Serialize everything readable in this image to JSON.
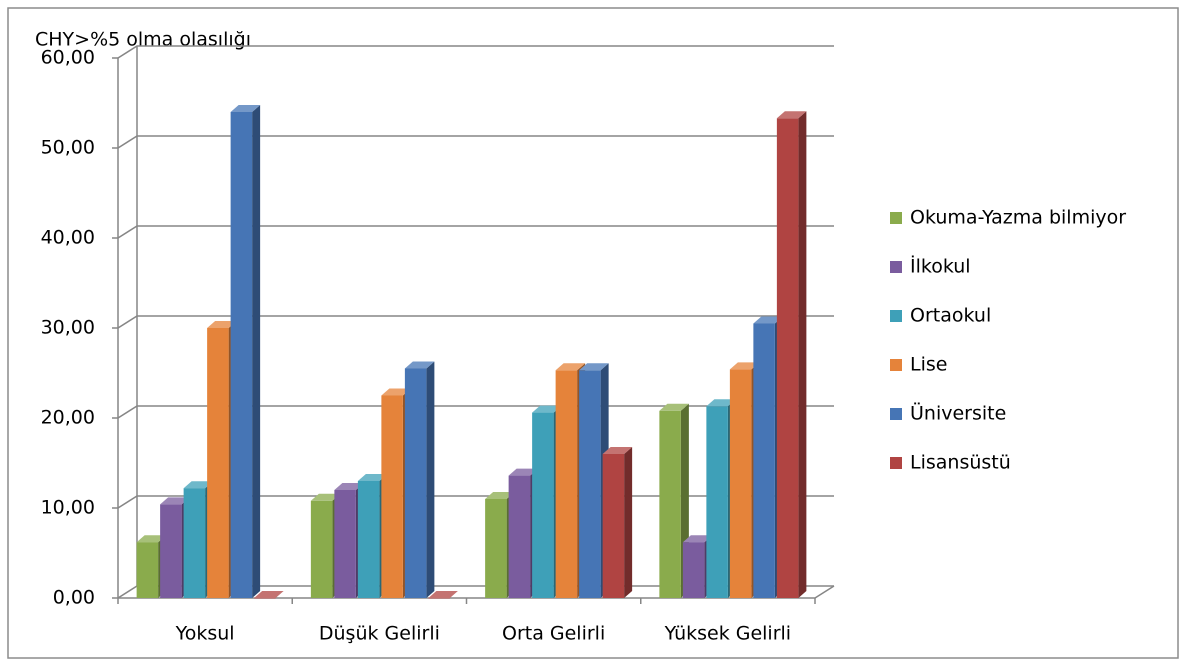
{
  "chart_data": {
    "type": "bar3d",
    "title": "CHY>%5 olma olasılığı",
    "categories": [
      "Yoksul",
      "Düşük Gelirli",
      "Orta Gelirli",
      "Yüksek Gelirli"
    ],
    "series": [
      {
        "name": "Okuma-Yazma bilmiyor",
        "color": "#8aab4c",
        "values": [
          6.2,
          10.8,
          11.0,
          20.8
        ]
      },
      {
        "name": "İlkokul",
        "color": "#7a5c9e",
        "values": [
          10.4,
          12.0,
          13.6,
          6.2
        ]
      },
      {
        "name": "Ortaokul",
        "color": "#3ea0b8",
        "values": [
          12.2,
          13.0,
          20.6,
          21.3
        ]
      },
      {
        "name": "Lise",
        "color": "#e5833a",
        "values": [
          30.0,
          22.5,
          25.3,
          25.4
        ]
      },
      {
        "name": "Üniversite",
        "color": "#4675b5",
        "values": [
          54.0,
          25.5,
          25.3,
          30.5
        ]
      },
      {
        "name": "Lisansüstü",
        "color": "#b04442",
        "values": [
          0,
          0,
          16.0,
          53.3
        ]
      }
    ],
    "ylim": [
      0,
      60
    ],
    "yticks": [
      {
        "value": 0,
        "label": "0,00"
      },
      {
        "value": 10,
        "label": "10,00"
      },
      {
        "value": 20,
        "label": "20,00"
      },
      {
        "value": 30,
        "label": "30,00"
      },
      {
        "value": 40,
        "label": "40,00"
      },
      {
        "value": 50,
        "label": "50,00"
      },
      {
        "value": 60,
        "label": "60,00"
      }
    ],
    "grid": true,
    "legend": "right"
  }
}
